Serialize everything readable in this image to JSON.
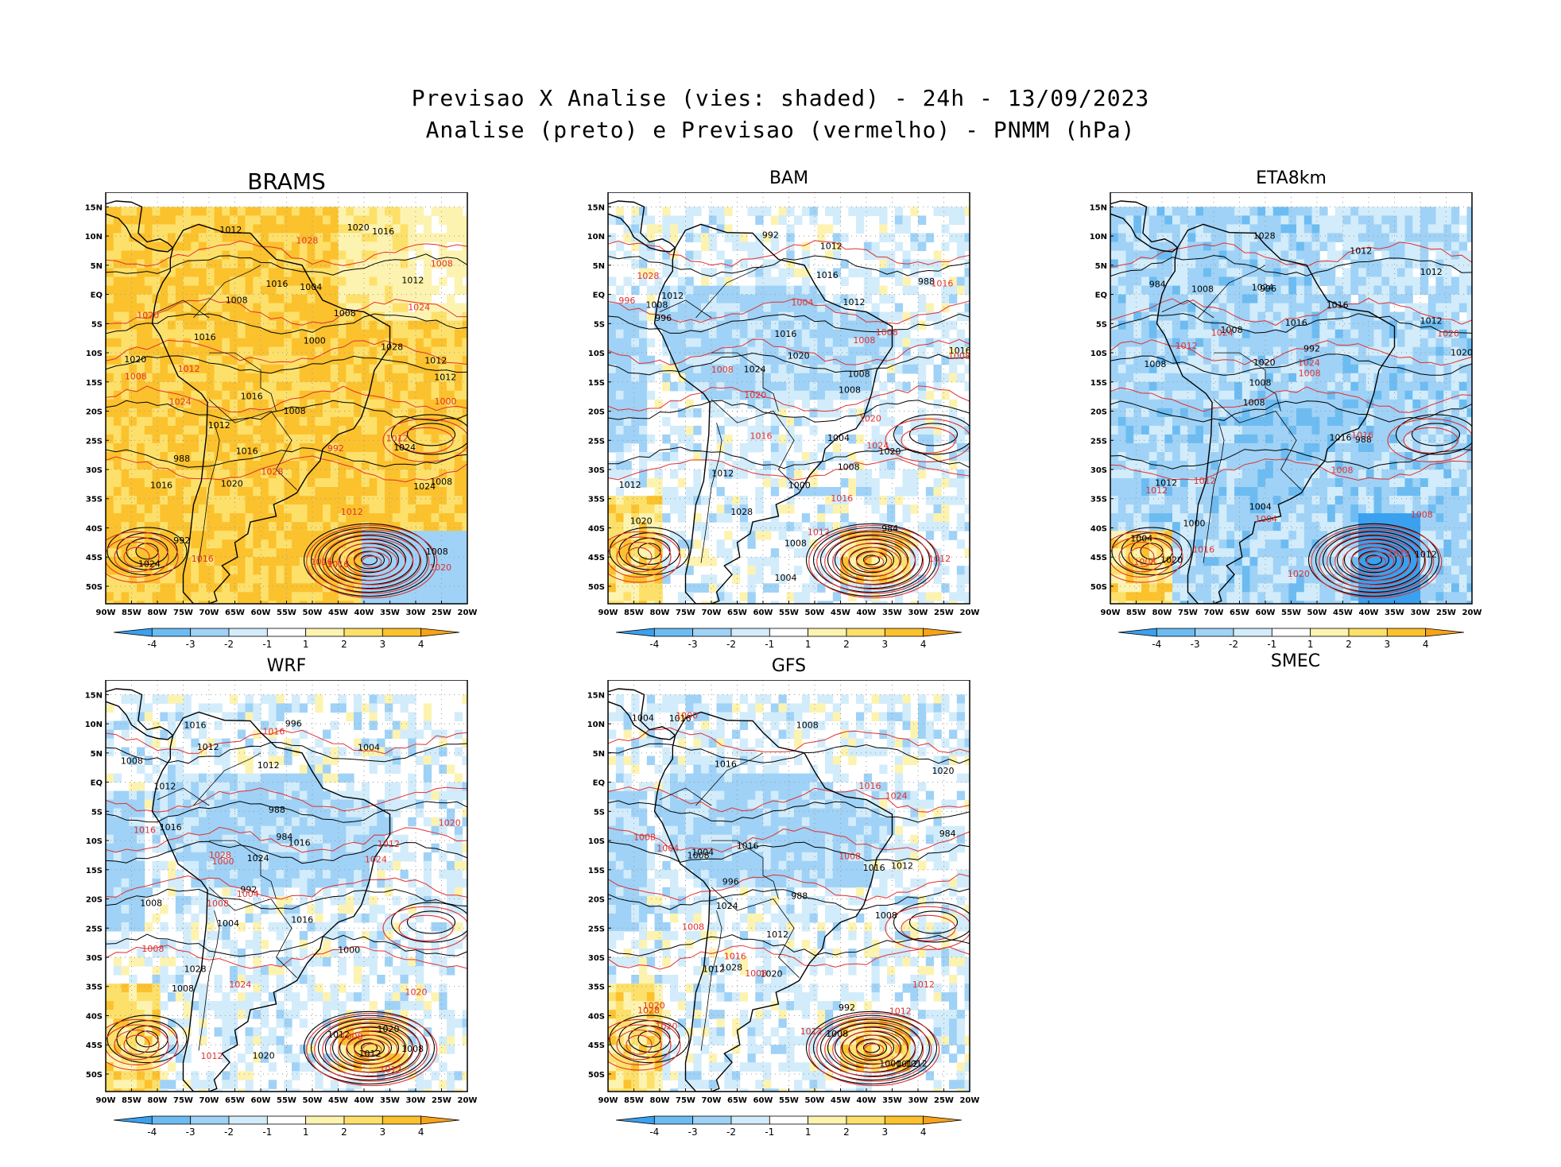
{
  "header": {
    "title_line1": "Previsao X Analise (vies: shaded) - 24h - 13/09/2023",
    "title_line2": "Analise (preto) e Previsao (vermelho) - PNMM (hPa)"
  },
  "axes": {
    "lat_labels": [
      "15N",
      "10N",
      "5N",
      "EQ",
      "5S",
      "10S",
      "15S",
      "20S",
      "25S",
      "30S",
      "35S",
      "40S",
      "45S",
      "50S"
    ],
    "lon_labels": [
      "90W",
      "85W",
      "80W",
      "75W",
      "70W",
      "65W",
      "60W",
      "55W",
      "50W",
      "45W",
      "40W",
      "35W",
      "30W",
      "25W",
      "20W"
    ]
  },
  "colorbar": {
    "labels": [
      "-4",
      "-3",
      "-2",
      "-1",
      "1",
      "2",
      "3",
      "4"
    ],
    "colors": [
      "#3aa0f0",
      "#6cbcf2",
      "#9fd2f6",
      "#d2ecfb",
      "#ffffff",
      "#fdf3b0",
      "#fde06a",
      "#fbc22e",
      "#f8a21a"
    ]
  },
  "legend_colors": {
    "analysis": "#000000",
    "forecast": "#e03030"
  },
  "panels": [
    {
      "name": "BRAMS",
      "bias": "warm-strong",
      "analysis_labels": [
        "1008",
        "1012",
        "1008",
        "1012",
        "1016",
        "1008",
        "1016",
        "1020",
        "1024",
        "1012",
        "1016",
        "1024",
        "1028",
        "1020",
        "1016",
        "1008",
        "1012",
        "1020",
        "1012",
        "1016",
        "1008",
        "1004",
        "992",
        "988",
        "1000",
        "1016",
        "1024"
      ],
      "forecast_labels": [
        "1012",
        "1016",
        "1008",
        "1016",
        "1020",
        "1024",
        "1028",
        "1012",
        "1008",
        "1000",
        "992",
        "1024",
        "1012",
        "1016",
        "1020",
        "1028"
      ]
    },
    {
      "name": "BAM",
      "bias": "cool-light",
      "analysis_labels": [
        "1012",
        "1008",
        "1012",
        "1008",
        "1016",
        "1020",
        "1024",
        "1016",
        "1012",
        "1008",
        "1004",
        "1000",
        "996",
        "992",
        "988",
        "984",
        "1028",
        "1020",
        "1016",
        "1012",
        "1008",
        "1004",
        "1020",
        "1008",
        "1012"
      ],
      "forecast_labels": [
        "1008",
        "1012",
        "1008",
        "1016",
        "1020",
        "1024",
        "1028",
        "1016",
        "1020",
        "1012",
        "1008",
        "996",
        "1004",
        "1008",
        "1016"
      ]
    },
    {
      "name": "ETA8km",
      "bias": "cool-medium",
      "analysis_labels": [
        "1012",
        "1008",
        "1012",
        "1008",
        "1016",
        "1020",
        "1024",
        "1016",
        "1012",
        "1008",
        "1004",
        "1000",
        "996",
        "992",
        "988",
        "984",
        "1028",
        "1020",
        "1016",
        "1012",
        "1008",
        "1004",
        "1020",
        "1008",
        "1012"
      ],
      "forecast_labels": [
        "1012",
        "1012",
        "1008",
        "1016",
        "1020",
        "1024",
        "1012",
        "1008",
        "1016",
        "1020",
        "1024",
        "1008",
        "1004",
        "1008",
        "1012"
      ]
    },
    {
      "name": "WRF",
      "bias": "cool-light",
      "analysis_labels": [
        "1008",
        "1012",
        "1016",
        "1008",
        "1012",
        "1016",
        "1020",
        "1024",
        "1028",
        "1016",
        "1012",
        "1008",
        "1004",
        "1000",
        "996",
        "992",
        "988",
        "984",
        "1020",
        "1016",
        "1012",
        "1004",
        "1008",
        "1012"
      ],
      "forecast_labels": [
        "1012",
        "1016",
        "1008",
        "1020",
        "1024",
        "1028",
        "1012",
        "1008",
        "1020",
        "1016",
        "1024",
        "1012",
        "1008",
        "1000",
        "1004"
      ]
    },
    {
      "name": "GFS",
      "bias": "cool-light",
      "analysis_labels": [
        "1012",
        "1008",
        "1016",
        "1008",
        "1012",
        "1016",
        "1020",
        "1024",
        "1028",
        "1016",
        "1012",
        "1008",
        "1004",
        "1000",
        "996",
        "992",
        "988",
        "984",
        "1020",
        "1016",
        "1012",
        "1004",
        "1008",
        "1012"
      ],
      "forecast_labels": [
        "1012",
        "1008",
        "1012",
        "1020",
        "1024",
        "1028",
        "1016",
        "1008",
        "1020",
        "1012",
        "1016",
        "1008",
        "1004",
        "1000",
        "1008"
      ]
    }
  ],
  "footer_label": "SMEC"
}
